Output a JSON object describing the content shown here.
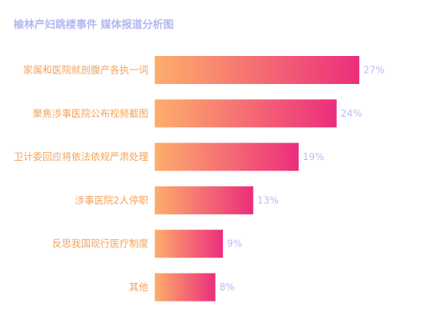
{
  "chart_data": {
    "type": "bar",
    "orientation": "horizontal",
    "title": "榆林产妇跳楼事件 媒体报道分析图",
    "categories": [
      "家属和医院就剖腹产各执一词",
      "聚焦涉事医院公布视频截图",
      "卫计委回应将依法依规严肃处理",
      "涉事医院2人停职",
      "反思我国现行医疗制度",
      "其他"
    ],
    "values": [
      27,
      24,
      19,
      13,
      9,
      8
    ],
    "value_suffix": "%",
    "xlim": [
      0,
      30
    ],
    "grid": false,
    "legend": "none",
    "colors": {
      "bar_gradient_start": "#fdae6b",
      "bar_gradient_end": "#ec2d7c",
      "category_label": "#f3a35a",
      "value_label": "#b8bdf0",
      "title": "#b3b9ef"
    }
  }
}
